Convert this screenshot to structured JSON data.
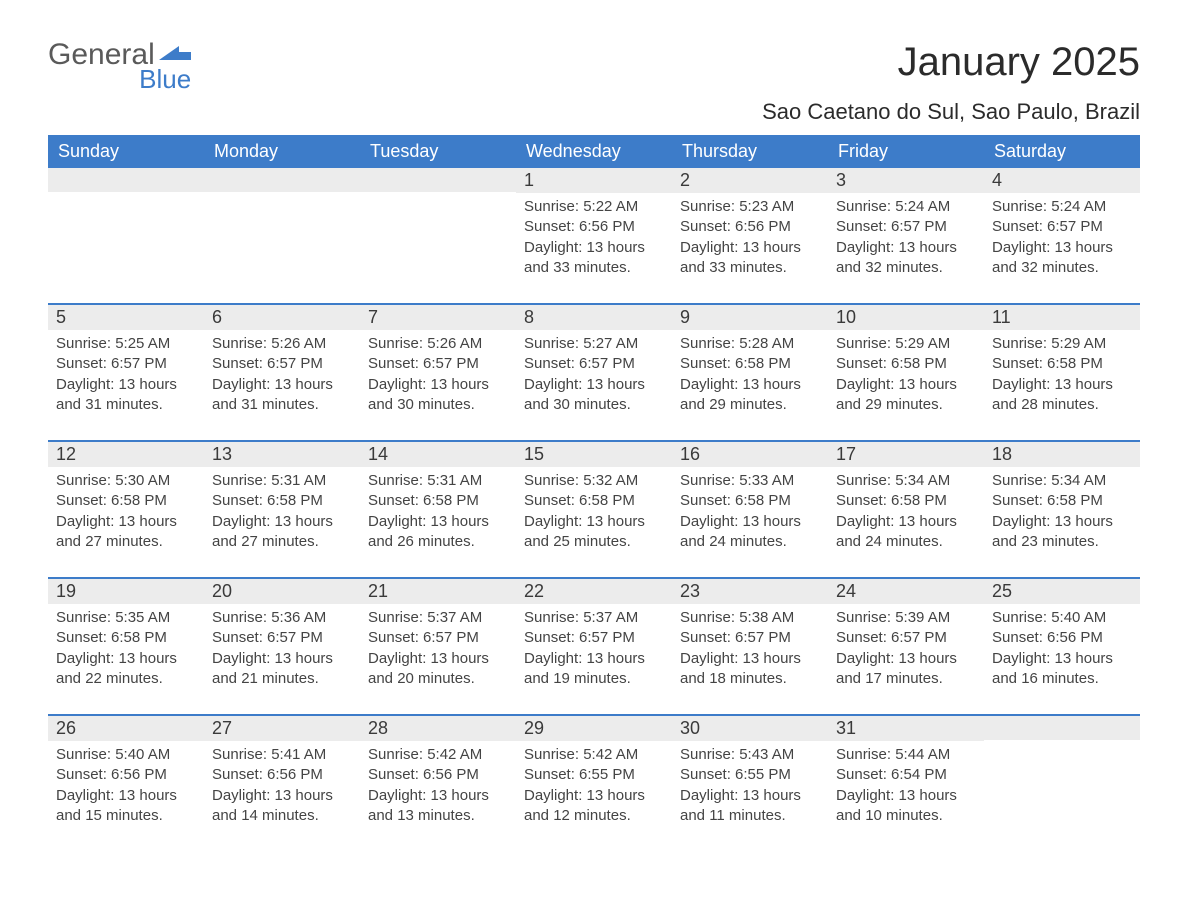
{
  "brand": {
    "general": "General",
    "blue": "Blue",
    "mark_color": "#3d7cc9"
  },
  "title": "January 2025",
  "location": "Sao Caetano do Sul, Sao Paulo, Brazil",
  "colors": {
    "header_bg": "#3d7cc9",
    "date_row_bg": "#ececec",
    "rule": "#3d7cc9",
    "page_bg": "#ffffff",
    "text": "#333333"
  },
  "columns": [
    "Sunday",
    "Monday",
    "Tuesday",
    "Wednesday",
    "Thursday",
    "Friday",
    "Saturday"
  ],
  "weeks": [
    [
      null,
      null,
      null,
      {
        "date": "1",
        "sunrise": "Sunrise: 5:22 AM",
        "sunset": "Sunset: 6:56 PM",
        "day1": "Daylight: 13 hours",
        "day2": "and 33 minutes."
      },
      {
        "date": "2",
        "sunrise": "Sunrise: 5:23 AM",
        "sunset": "Sunset: 6:56 PM",
        "day1": "Daylight: 13 hours",
        "day2": "and 33 minutes."
      },
      {
        "date": "3",
        "sunrise": "Sunrise: 5:24 AM",
        "sunset": "Sunset: 6:57 PM",
        "day1": "Daylight: 13 hours",
        "day2": "and 32 minutes."
      },
      {
        "date": "4",
        "sunrise": "Sunrise: 5:24 AM",
        "sunset": "Sunset: 6:57 PM",
        "day1": "Daylight: 13 hours",
        "day2": "and 32 minutes."
      }
    ],
    [
      {
        "date": "5",
        "sunrise": "Sunrise: 5:25 AM",
        "sunset": "Sunset: 6:57 PM",
        "day1": "Daylight: 13 hours",
        "day2": "and 31 minutes."
      },
      {
        "date": "6",
        "sunrise": "Sunrise: 5:26 AM",
        "sunset": "Sunset: 6:57 PM",
        "day1": "Daylight: 13 hours",
        "day2": "and 31 minutes."
      },
      {
        "date": "7",
        "sunrise": "Sunrise: 5:26 AM",
        "sunset": "Sunset: 6:57 PM",
        "day1": "Daylight: 13 hours",
        "day2": "and 30 minutes."
      },
      {
        "date": "8",
        "sunrise": "Sunrise: 5:27 AM",
        "sunset": "Sunset: 6:57 PM",
        "day1": "Daylight: 13 hours",
        "day2": "and 30 minutes."
      },
      {
        "date": "9",
        "sunrise": "Sunrise: 5:28 AM",
        "sunset": "Sunset: 6:58 PM",
        "day1": "Daylight: 13 hours",
        "day2": "and 29 minutes."
      },
      {
        "date": "10",
        "sunrise": "Sunrise: 5:29 AM",
        "sunset": "Sunset: 6:58 PM",
        "day1": "Daylight: 13 hours",
        "day2": "and 29 minutes."
      },
      {
        "date": "11",
        "sunrise": "Sunrise: 5:29 AM",
        "sunset": "Sunset: 6:58 PM",
        "day1": "Daylight: 13 hours",
        "day2": "and 28 minutes."
      }
    ],
    [
      {
        "date": "12",
        "sunrise": "Sunrise: 5:30 AM",
        "sunset": "Sunset: 6:58 PM",
        "day1": "Daylight: 13 hours",
        "day2": "and 27 minutes."
      },
      {
        "date": "13",
        "sunrise": "Sunrise: 5:31 AM",
        "sunset": "Sunset: 6:58 PM",
        "day1": "Daylight: 13 hours",
        "day2": "and 27 minutes."
      },
      {
        "date": "14",
        "sunrise": "Sunrise: 5:31 AM",
        "sunset": "Sunset: 6:58 PM",
        "day1": "Daylight: 13 hours",
        "day2": "and 26 minutes."
      },
      {
        "date": "15",
        "sunrise": "Sunrise: 5:32 AM",
        "sunset": "Sunset: 6:58 PM",
        "day1": "Daylight: 13 hours",
        "day2": "and 25 minutes."
      },
      {
        "date": "16",
        "sunrise": "Sunrise: 5:33 AM",
        "sunset": "Sunset: 6:58 PM",
        "day1": "Daylight: 13 hours",
        "day2": "and 24 minutes."
      },
      {
        "date": "17",
        "sunrise": "Sunrise: 5:34 AM",
        "sunset": "Sunset: 6:58 PM",
        "day1": "Daylight: 13 hours",
        "day2": "and 24 minutes."
      },
      {
        "date": "18",
        "sunrise": "Sunrise: 5:34 AM",
        "sunset": "Sunset: 6:58 PM",
        "day1": "Daylight: 13 hours",
        "day2": "and 23 minutes."
      }
    ],
    [
      {
        "date": "19",
        "sunrise": "Sunrise: 5:35 AM",
        "sunset": "Sunset: 6:58 PM",
        "day1": "Daylight: 13 hours",
        "day2": "and 22 minutes."
      },
      {
        "date": "20",
        "sunrise": "Sunrise: 5:36 AM",
        "sunset": "Sunset: 6:57 PM",
        "day1": "Daylight: 13 hours",
        "day2": "and 21 minutes."
      },
      {
        "date": "21",
        "sunrise": "Sunrise: 5:37 AM",
        "sunset": "Sunset: 6:57 PM",
        "day1": "Daylight: 13 hours",
        "day2": "and 20 minutes."
      },
      {
        "date": "22",
        "sunrise": "Sunrise: 5:37 AM",
        "sunset": "Sunset: 6:57 PM",
        "day1": "Daylight: 13 hours",
        "day2": "and 19 minutes."
      },
      {
        "date": "23",
        "sunrise": "Sunrise: 5:38 AM",
        "sunset": "Sunset: 6:57 PM",
        "day1": "Daylight: 13 hours",
        "day2": "and 18 minutes."
      },
      {
        "date": "24",
        "sunrise": "Sunrise: 5:39 AM",
        "sunset": "Sunset: 6:57 PM",
        "day1": "Daylight: 13 hours",
        "day2": "and 17 minutes."
      },
      {
        "date": "25",
        "sunrise": "Sunrise: 5:40 AM",
        "sunset": "Sunset: 6:56 PM",
        "day1": "Daylight: 13 hours",
        "day2": "and 16 minutes."
      }
    ],
    [
      {
        "date": "26",
        "sunrise": "Sunrise: 5:40 AM",
        "sunset": "Sunset: 6:56 PM",
        "day1": "Daylight: 13 hours",
        "day2": "and 15 minutes."
      },
      {
        "date": "27",
        "sunrise": "Sunrise: 5:41 AM",
        "sunset": "Sunset: 6:56 PM",
        "day1": "Daylight: 13 hours",
        "day2": "and 14 minutes."
      },
      {
        "date": "28",
        "sunrise": "Sunrise: 5:42 AM",
        "sunset": "Sunset: 6:56 PM",
        "day1": "Daylight: 13 hours",
        "day2": "and 13 minutes."
      },
      {
        "date": "29",
        "sunrise": "Sunrise: 5:42 AM",
        "sunset": "Sunset: 6:55 PM",
        "day1": "Daylight: 13 hours",
        "day2": "and 12 minutes."
      },
      {
        "date": "30",
        "sunrise": "Sunrise: 5:43 AM",
        "sunset": "Sunset: 6:55 PM",
        "day1": "Daylight: 13 hours",
        "day2": "and 11 minutes."
      },
      {
        "date": "31",
        "sunrise": "Sunrise: 5:44 AM",
        "sunset": "Sunset: 6:54 PM",
        "day1": "Daylight: 13 hours",
        "day2": "and 10 minutes."
      },
      null
    ]
  ]
}
